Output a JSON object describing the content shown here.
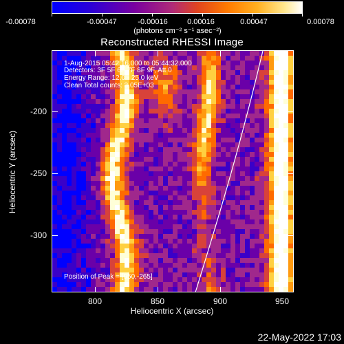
{
  "colorbar": {
    "tick_labels": [
      "-0.00078",
      "-0.00047",
      "-0.00016",
      "0.00016",
      "0.00047",
      "0.00078"
    ],
    "units": "(photons cm⁻² s⁻¹ asec⁻²)"
  },
  "title": "Reconstructed RHESSI Image",
  "info": {
    "time_range": "1-Aug-2015 05:42:16.000 to 05:44:32.000",
    "detectors": "Detectors: 3F 5F 6F 7F 8F 9F, Att 0",
    "energy_range": "Energy Range: 12.0 - 25.0 keV",
    "clean_total": "Clean     Total counts: 3.05E+03",
    "peak": "Position of Peak = [950,-265]"
  },
  "axes": {
    "xlabel": "Heliocentric X (arcsec)",
    "ylabel": "Heliocentric Y (arcsec)",
    "xticks": [
      "800",
      "850",
      "900",
      "950"
    ],
    "yticks": [
      "-200",
      "-250",
      "-300"
    ]
  },
  "datestamp": "22-May-2022 17:03",
  "colors": {
    "cmap": [
      "#0000ff",
      "#3a00c8",
      "#6a00a8",
      "#a0288c",
      "#d8423a",
      "#ff6a00",
      "#ff9a10",
      "#ffd040",
      "#ffffd8",
      "#ffffff"
    ],
    "foreground": "#ffffff",
    "background": "#000000"
  }
}
